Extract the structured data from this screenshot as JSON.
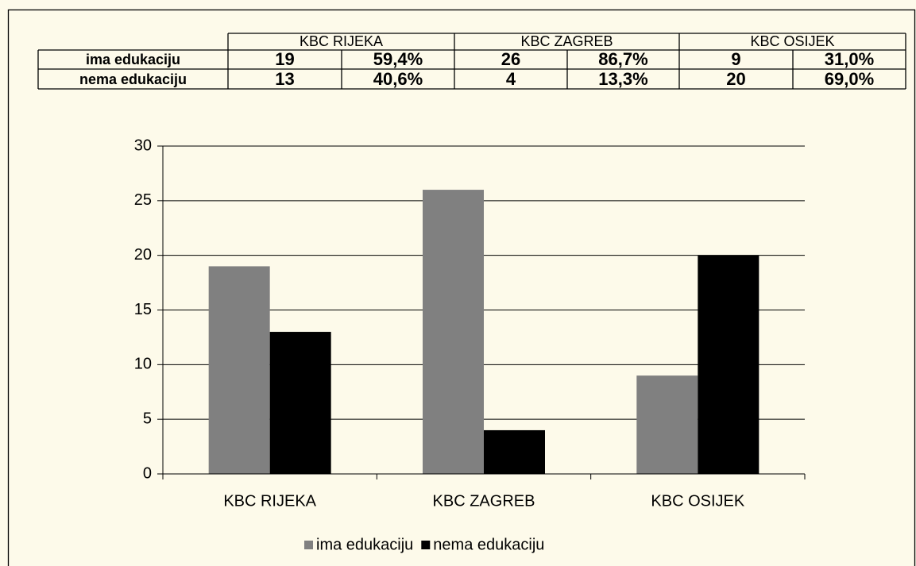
{
  "table": {
    "header": [
      "KBC RIJEKA",
      "KBC ZAGREB",
      "KBC OSIJEK"
    ],
    "rows": [
      [
        "ima edukaciju",
        "19",
        "59,4%",
        "26",
        "86,7%",
        "9",
        "31,0%"
      ],
      [
        "nema edukaciju",
        "13",
        "40,6%",
        "4",
        "13,3%",
        "20",
        "69,0%"
      ]
    ]
  },
  "chart_data": {
    "type": "bar",
    "categories": [
      "KBC RIJEKA",
      "KBC ZAGREB",
      "KBC OSIJEK"
    ],
    "series": [
      {
        "name": "ima edukaciju",
        "color": "#808080",
        "values": [
          19,
          26,
          9
        ]
      },
      {
        "name": "nema edukaciju",
        "color": "#000000",
        "values": [
          13,
          4,
          20
        ]
      }
    ],
    "ylim": [
      0,
      30
    ],
    "yticks": [
      0,
      5,
      10,
      15,
      20,
      25,
      30
    ],
    "grid": true,
    "legend": "bottom"
  }
}
